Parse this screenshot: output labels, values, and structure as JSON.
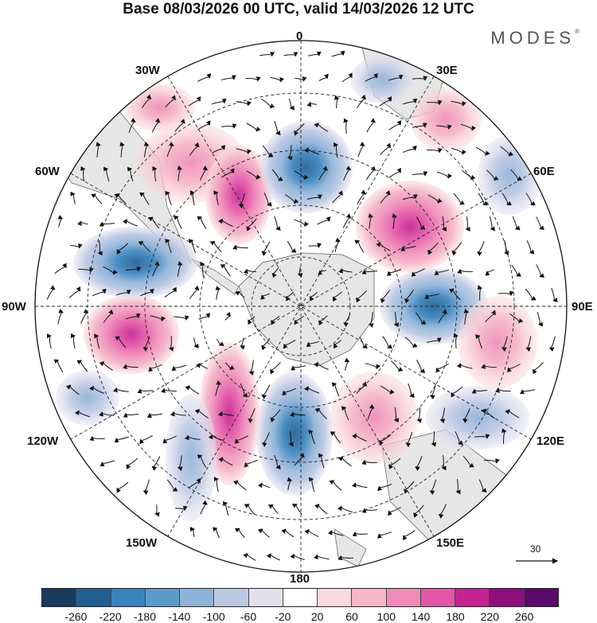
{
  "header": {
    "title": "Base 08/03/2026 00 UTC, valid 14/03/2026 12 UTC",
    "brand": "MODES",
    "brand_mark": "®"
  },
  "map": {
    "projection": "south-polar-stereographic",
    "labels": {
      "lon_0": "0",
      "lon_30e": "30E",
      "lon_60e": "60E",
      "lon_90e": "90E",
      "lon_120e": "120E",
      "lon_150e": "150E",
      "lon_180": "180",
      "lon_150w": "150W",
      "lon_120w": "120W",
      "lon_90w": "90W",
      "lon_60w": "60W",
      "lon_30w": "30W"
    },
    "land_color": "#e6e6e6",
    "grid_color": "#222222"
  },
  "vector_reference": {
    "value": "30"
  },
  "colorbar": {
    "colors": [
      "#1a3a5e",
      "#225f92",
      "#3a84be",
      "#5c9ccb",
      "#8fb3d8",
      "#bcc9e3",
      "#e2e0ef",
      "#ffffff",
      "#fadadb",
      "#f5b7c9",
      "#ef8cb8",
      "#e456a7",
      "#c42290",
      "#8e0f7e",
      "#5a0a6b"
    ],
    "tick_labels": [
      "-260",
      "-220",
      "-180",
      "-140",
      "-100",
      "-60",
      "-20",
      "20",
      "60",
      "100",
      "140",
      "180",
      "220",
      "260"
    ]
  }
}
